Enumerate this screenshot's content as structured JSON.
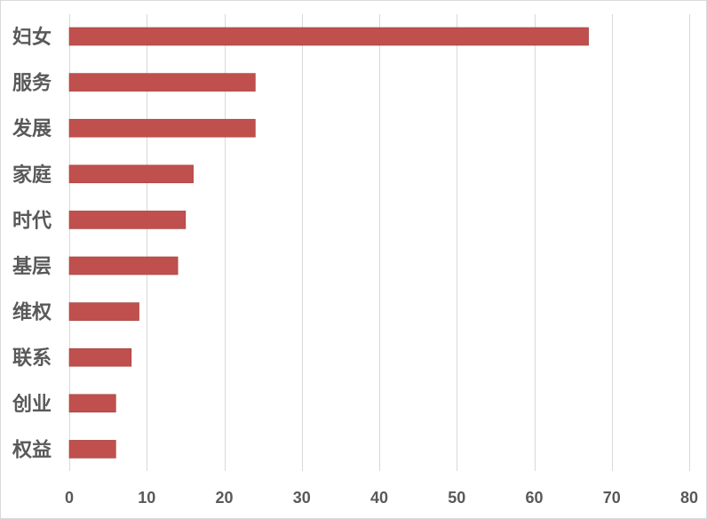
{
  "chart_data": {
    "type": "bar",
    "orientation": "horizontal",
    "title": "",
    "xlabel": "",
    "ylabel": "",
    "categories": [
      "妇女",
      "服务",
      "发展",
      "家庭",
      "时代",
      "基层",
      "维权",
      "联系",
      "创业",
      "权益"
    ],
    "values": [
      67,
      24,
      24,
      16,
      15,
      14,
      9,
      8,
      6,
      6
    ],
    "xlim": [
      0,
      80
    ],
    "xticks": [
      "0",
      "10",
      "20",
      "30",
      "40",
      "50",
      "60",
      "70",
      "80"
    ],
    "grid": "vertical",
    "legend": "none",
    "colors": {
      "bar": "#c0504d",
      "bar_edge": "#a03c39",
      "grid": "#d9d9d9",
      "text": "#595959"
    }
  }
}
